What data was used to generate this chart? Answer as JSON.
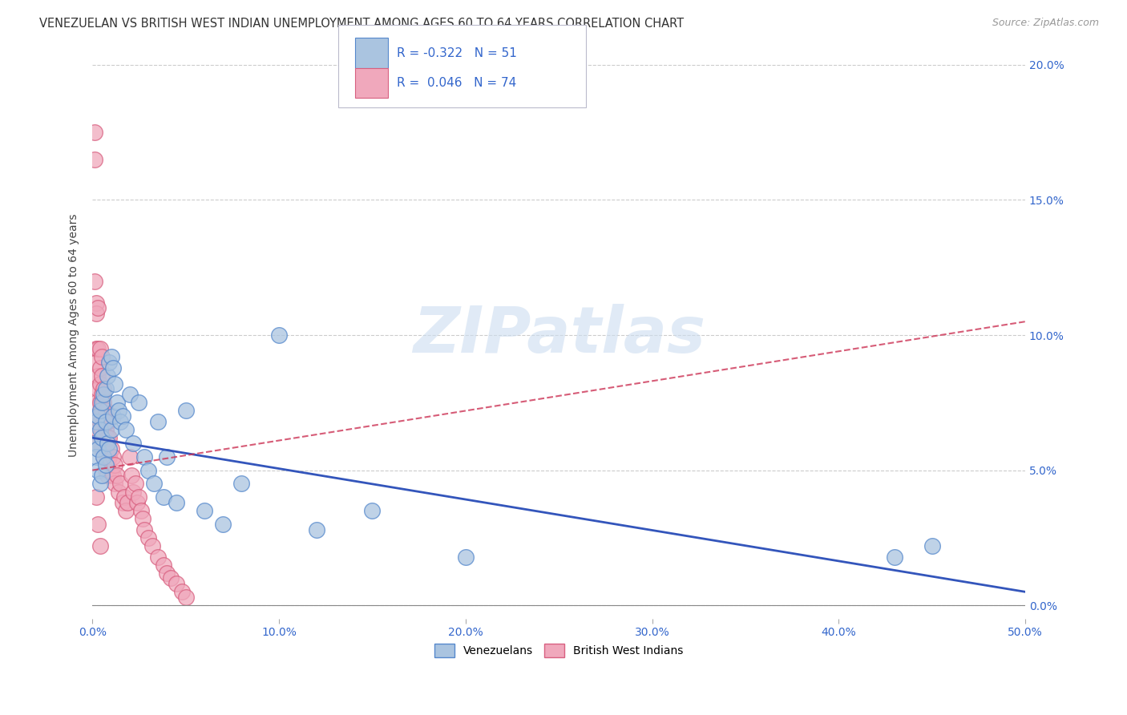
{
  "title": "VENEZUELAN VS BRITISH WEST INDIAN UNEMPLOYMENT AMONG AGES 60 TO 64 YEARS CORRELATION CHART",
  "source": "Source: ZipAtlas.com",
  "ylabel": "Unemployment Among Ages 60 to 64 years",
  "xlim": [
    0.0,
    0.5
  ],
  "ylim": [
    -0.005,
    0.205
  ],
  "xticks": [
    0.0,
    0.1,
    0.2,
    0.3,
    0.4,
    0.5
  ],
  "yticks": [
    0.0,
    0.05,
    0.1,
    0.15,
    0.2
  ],
  "xticklabels": [
    "0.0%",
    "10.0%",
    "20.0%",
    "30.0%",
    "40.0%",
    "50.0%"
  ],
  "yticklabels_right": [
    "0.0%",
    "5.0%",
    "10.0%",
    "15.0%",
    "20.0%"
  ],
  "venezuelan_color": "#aac4e0",
  "bwi_color": "#f0a8bc",
  "venezuelan_edge": "#5588cc",
  "bwi_edge": "#d86080",
  "trend_venezuelan_color": "#3355bb",
  "trend_bwi_color": "#cc3355",
  "R_venezuelan": -0.322,
  "N_venezuelan": 51,
  "R_bwi": 0.046,
  "N_bwi": 74,
  "legend_venezuelan": "Venezuelans",
  "legend_bwi": "British West Indians",
  "watermark": "ZIPatlas",
  "title_fontsize": 10.5,
  "ylabel_fontsize": 10,
  "tick_fontsize": 10,
  "legend_fontsize": 10,
  "trend_ven_x0": 0.0,
  "trend_ven_y0": 0.062,
  "trend_ven_x1": 0.5,
  "trend_ven_y1": 0.005,
  "trend_bwi_x0": 0.0,
  "trend_bwi_y0": 0.05,
  "trend_bwi_x1": 0.5,
  "trend_bwi_y1": 0.105,
  "venezuelan_x": [
    0.001,
    0.002,
    0.002,
    0.003,
    0.003,
    0.003,
    0.004,
    0.004,
    0.004,
    0.005,
    0.005,
    0.005,
    0.006,
    0.006,
    0.007,
    0.007,
    0.007,
    0.008,
    0.008,
    0.009,
    0.009,
    0.01,
    0.01,
    0.011,
    0.011,
    0.012,
    0.013,
    0.014,
    0.015,
    0.016,
    0.018,
    0.02,
    0.022,
    0.025,
    0.028,
    0.03,
    0.033,
    0.035,
    0.038,
    0.04,
    0.045,
    0.05,
    0.06,
    0.07,
    0.08,
    0.1,
    0.12,
    0.15,
    0.2,
    0.43,
    0.45
  ],
  "venezuelan_y": [
    0.06,
    0.055,
    0.068,
    0.058,
    0.07,
    0.05,
    0.065,
    0.072,
    0.045,
    0.062,
    0.075,
    0.048,
    0.078,
    0.055,
    0.08,
    0.068,
    0.052,
    0.085,
    0.06,
    0.09,
    0.058,
    0.092,
    0.065,
    0.088,
    0.07,
    0.082,
    0.075,
    0.072,
    0.068,
    0.07,
    0.065,
    0.078,
    0.06,
    0.075,
    0.055,
    0.05,
    0.045,
    0.068,
    0.04,
    0.055,
    0.038,
    0.072,
    0.035,
    0.03,
    0.045,
    0.1,
    0.028,
    0.035,
    0.018,
    0.018,
    0.022
  ],
  "bwi_x": [
    0.001,
    0.001,
    0.001,
    0.002,
    0.002,
    0.002,
    0.002,
    0.002,
    0.003,
    0.003,
    0.003,
    0.003,
    0.003,
    0.003,
    0.004,
    0.004,
    0.004,
    0.004,
    0.004,
    0.005,
    0.005,
    0.005,
    0.005,
    0.005,
    0.005,
    0.006,
    0.006,
    0.006,
    0.006,
    0.007,
    0.007,
    0.007,
    0.007,
    0.008,
    0.008,
    0.008,
    0.008,
    0.009,
    0.009,
    0.01,
    0.01,
    0.011,
    0.011,
    0.012,
    0.012,
    0.013,
    0.014,
    0.015,
    0.016,
    0.017,
    0.018,
    0.019,
    0.02,
    0.021,
    0.022,
    0.023,
    0.024,
    0.025,
    0.026,
    0.027,
    0.028,
    0.03,
    0.032,
    0.035,
    0.038,
    0.04,
    0.042,
    0.045,
    0.048,
    0.05,
    0.001,
    0.002,
    0.003,
    0.004
  ],
  "bwi_y": [
    0.175,
    0.165,
    0.12,
    0.112,
    0.108,
    0.095,
    0.09,
    0.075,
    0.11,
    0.095,
    0.085,
    0.08,
    0.07,
    0.065,
    0.095,
    0.088,
    0.082,
    0.075,
    0.068,
    0.092,
    0.085,
    0.078,
    0.072,
    0.065,
    0.058,
    0.08,
    0.075,
    0.068,
    0.055,
    0.072,
    0.065,
    0.058,
    0.05,
    0.068,
    0.062,
    0.055,
    0.048,
    0.062,
    0.055,
    0.058,
    0.05,
    0.055,
    0.048,
    0.052,
    0.045,
    0.048,
    0.042,
    0.045,
    0.038,
    0.04,
    0.035,
    0.038,
    0.055,
    0.048,
    0.042,
    0.045,
    0.038,
    0.04,
    0.035,
    0.032,
    0.028,
    0.025,
    0.022,
    0.018,
    0.015,
    0.012,
    0.01,
    0.008,
    0.005,
    0.003,
    0.06,
    0.04,
    0.03,
    0.022
  ]
}
